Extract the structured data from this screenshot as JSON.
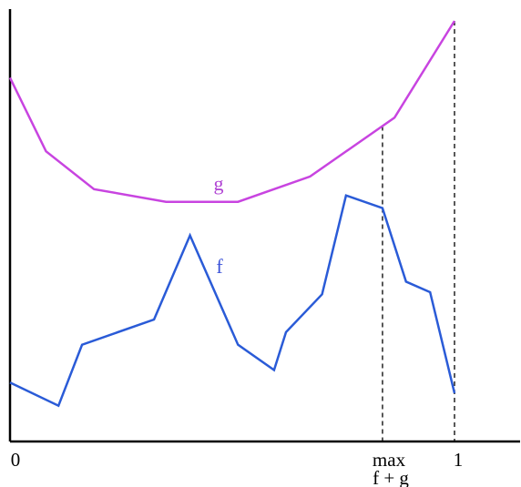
{
  "colors": {
    "axis": "#000000",
    "curve_f": "#2a5bd7",
    "curve_g": "#c844e0",
    "label_f": "#3b52d8",
    "label_g": "#b043d4",
    "guide": "#000000",
    "text": "#000000"
  },
  "labels": {
    "curve_f": "f",
    "curve_g": "g",
    "x_zero": "0",
    "x_one": "1",
    "x_max_line1": "max",
    "x_max_line2": "f + g"
  },
  "chart_data": {
    "type": "line",
    "title": "",
    "xlabel": "",
    "ylabel": "",
    "xlim": [
      0,
      1.15
    ],
    "ylim": [
      0,
      1
    ],
    "grid": false,
    "x_ticks": [
      {
        "x": 0,
        "label": "0"
      },
      {
        "x": 0.838,
        "label": "max\nf + g"
      },
      {
        "x": 1,
        "label": "1"
      }
    ],
    "guides": [
      {
        "x": 0.838,
        "style": "dashed",
        "from_y": 0,
        "to_y": "curve_g"
      },
      {
        "x": 1,
        "style": "dashed",
        "from_y": 0,
        "to_y": "curve_g"
      }
    ],
    "series": [
      {
        "name": "f",
        "x": [
          0,
          0.109,
          0.162,
          0.324,
          0.405,
          0.513,
          0.594,
          0.621,
          0.702,
          0.756,
          0.838,
          0.891,
          0.945,
          1.0
        ],
        "y": [
          0.14,
          0.085,
          0.23,
          0.29,
          0.49,
          0.23,
          0.17,
          0.26,
          0.35,
          0.585,
          0.555,
          0.38,
          0.355,
          0.115
        ]
      },
      {
        "name": "g",
        "x": [
          0,
          0.081,
          0.189,
          0.351,
          0.513,
          0.675,
          0.865,
          1.0
        ],
        "y": [
          0.865,
          0.69,
          0.6,
          0.57,
          0.57,
          0.63,
          0.77,
          1.0
        ]
      }
    ]
  }
}
